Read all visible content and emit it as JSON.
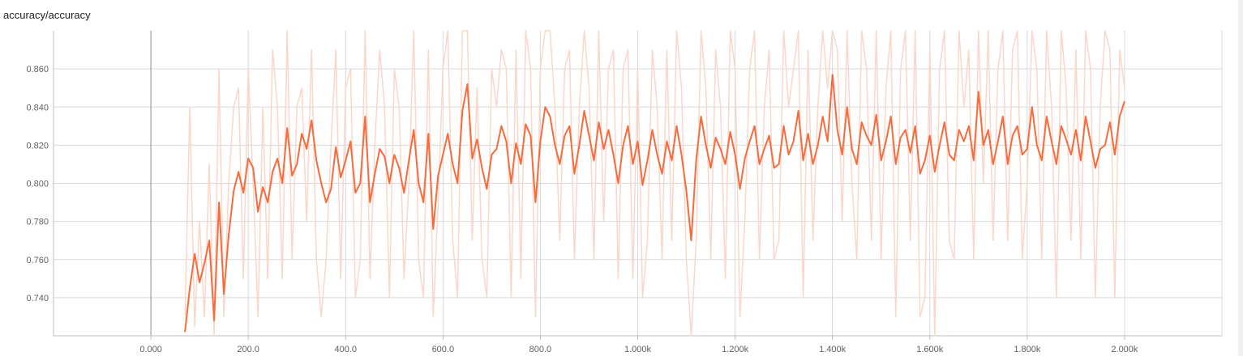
{
  "chart_data": {
    "type": "line",
    "title": "accuracy/accuracy",
    "xlabel": "",
    "ylabel": "",
    "xlim": [
      -200,
      2200
    ],
    "ylim": [
      0.72,
      0.88
    ],
    "x_ticks": [
      0,
      200,
      400,
      600,
      800,
      1000,
      1200,
      1400,
      1600,
      1800,
      2000
    ],
    "x_tick_labels": [
      "0.000",
      "200.0",
      "400.0",
      "600.0",
      "800.0",
      "1.000k",
      "1.200k",
      "1.400k",
      "1.600k",
      "1.800k",
      "2.000k"
    ],
    "y_ticks": [
      0.74,
      0.76,
      0.78,
      0.8,
      0.82,
      0.84,
      0.86
    ],
    "y_tick_labels": [
      "0.740",
      "0.760",
      "0.780",
      "0.800",
      "0.820",
      "0.840",
      "0.860"
    ],
    "grid": true,
    "colors": {
      "smoothed": "#f96b3c",
      "raw": "#fbd6c9",
      "zero_line": "#9e9e9e"
    },
    "series": [
      {
        "role": "smoothed",
        "x": [
          70,
          80,
          90,
          100,
          110,
          120,
          130,
          140,
          150,
          160,
          170,
          180,
          190,
          200,
          210,
          220,
          230,
          240,
          250,
          260,
          270,
          280,
          290,
          300,
          310,
          320,
          330,
          340,
          350,
          360,
          370,
          380,
          390,
          400,
          410,
          420,
          430,
          440,
          450,
          460,
          470,
          480,
          490,
          500,
          510,
          520,
          530,
          540,
          550,
          560,
          570,
          580,
          590,
          600,
          610,
          620,
          630,
          640,
          650,
          660,
          670,
          680,
          690,
          700,
          710,
          720,
          730,
          740,
          750,
          760,
          770,
          780,
          790,
          800,
          810,
          820,
          830,
          840,
          850,
          860,
          870,
          880,
          890,
          900,
          910,
          920,
          930,
          940,
          950,
          960,
          970,
          980,
          990,
          1000,
          1010,
          1020,
          1030,
          1040,
          1050,
          1060,
          1070,
          1080,
          1090,
          1100,
          1110,
          1120,
          1130,
          1140,
          1150,
          1160,
          1170,
          1180,
          1190,
          1200,
          1210,
          1220,
          1230,
          1240,
          1250,
          1260,
          1270,
          1280,
          1290,
          1300,
          1310,
          1320,
          1330,
          1340,
          1350,
          1360,
          1370,
          1380,
          1390,
          1400,
          1410,
          1420,
          1430,
          1440,
          1450,
          1460,
          1470,
          1480,
          1490,
          1500,
          1510,
          1520,
          1530,
          1540,
          1550,
          1560,
          1570,
          1580,
          1590,
          1600,
          1610,
          1620,
          1630,
          1640,
          1650,
          1660,
          1670,
          1680,
          1690,
          1700,
          1710,
          1720,
          1730,
          1740,
          1750,
          1760,
          1770,
          1780,
          1790,
          1800,
          1810,
          1820,
          1830,
          1840,
          1850,
          1860,
          1870,
          1880,
          1890,
          1900,
          1910,
          1920,
          1930,
          1940,
          1950,
          1960,
          1970,
          1980,
          1990,
          2000
        ],
        "y": [
          0.722,
          0.745,
          0.763,
          0.748,
          0.758,
          0.77,
          0.728,
          0.79,
          0.742,
          0.773,
          0.796,
          0.806,
          0.795,
          0.813,
          0.808,
          0.785,
          0.798,
          0.79,
          0.806,
          0.813,
          0.8,
          0.829,
          0.804,
          0.81,
          0.826,
          0.818,
          0.833,
          0.812,
          0.8,
          0.79,
          0.797,
          0.819,
          0.803,
          0.812,
          0.822,
          0.795,
          0.8,
          0.835,
          0.79,
          0.805,
          0.818,
          0.814,
          0.8,
          0.815,
          0.808,
          0.795,
          0.812,
          0.828,
          0.8,
          0.79,
          0.826,
          0.776,
          0.804,
          0.815,
          0.826,
          0.81,
          0.8,
          0.838,
          0.852,
          0.813,
          0.823,
          0.808,
          0.797,
          0.815,
          0.818,
          0.83,
          0.822,
          0.8,
          0.821,
          0.81,
          0.831,
          0.825,
          0.79,
          0.822,
          0.84,
          0.835,
          0.82,
          0.81,
          0.825,
          0.83,
          0.805,
          0.82,
          0.838,
          0.825,
          0.812,
          0.832,
          0.818,
          0.828,
          0.815,
          0.8,
          0.82,
          0.83,
          0.81,
          0.822,
          0.799,
          0.812,
          0.828,
          0.815,
          0.805,
          0.822,
          0.812,
          0.83,
          0.815,
          0.796,
          0.77,
          0.812,
          0.835,
          0.82,
          0.808,
          0.824,
          0.818,
          0.81,
          0.827,
          0.815,
          0.797,
          0.813,
          0.822,
          0.83,
          0.81,
          0.818,
          0.825,
          0.808,
          0.81,
          0.83,
          0.815,
          0.822,
          0.838,
          0.812,
          0.826,
          0.81,
          0.82,
          0.835,
          0.822,
          0.857,
          0.828,
          0.815,
          0.84,
          0.818,
          0.81,
          0.832,
          0.825,
          0.82,
          0.836,
          0.812,
          0.822,
          0.835,
          0.81,
          0.824,
          0.828,
          0.816,
          0.83,
          0.805,
          0.812,
          0.825,
          0.806,
          0.82,
          0.832,
          0.815,
          0.812,
          0.828,
          0.822,
          0.83,
          0.812,
          0.848,
          0.82,
          0.828,
          0.81,
          0.822,
          0.835,
          0.81,
          0.825,
          0.83,
          0.815,
          0.818,
          0.84,
          0.82,
          0.812,
          0.835,
          0.822,
          0.81,
          0.83,
          0.823,
          0.815,
          0.828,
          0.812,
          0.835,
          0.822,
          0.808,
          0.818,
          0.82,
          0.832,
          0.815,
          0.835,
          0.843
        ]
      },
      {
        "role": "raw",
        "x": [
          70,
          80,
          90,
          100,
          110,
          120,
          130,
          140,
          150,
          160,
          170,
          180,
          190,
          200,
          210,
          220,
          230,
          240,
          250,
          260,
          270,
          280,
          290,
          300,
          310,
          320,
          330,
          340,
          350,
          360,
          370,
          380,
          390,
          400,
          410,
          420,
          430,
          440,
          450,
          460,
          470,
          480,
          490,
          500,
          510,
          520,
          530,
          540,
          550,
          560,
          570,
          580,
          590,
          600,
          610,
          620,
          630,
          640,
          650,
          660,
          670,
          680,
          690,
          700,
          710,
          720,
          730,
          740,
          750,
          760,
          770,
          780,
          790,
          800,
          810,
          820,
          830,
          840,
          850,
          860,
          870,
          880,
          890,
          900,
          910,
          920,
          930,
          940,
          950,
          960,
          970,
          980,
          990,
          1000,
          1010,
          1020,
          1030,
          1040,
          1050,
          1060,
          1070,
          1080,
          1090,
          1100,
          1110,
          1120,
          1130,
          1140,
          1150,
          1160,
          1170,
          1180,
          1190,
          1200,
          1210,
          1220,
          1230,
          1240,
          1250,
          1260,
          1270,
          1280,
          1290,
          1300,
          1310,
          1320,
          1330,
          1340,
          1350,
          1360,
          1370,
          1380,
          1390,
          1400,
          1410,
          1420,
          1430,
          1440,
          1450,
          1460,
          1470,
          1480,
          1490,
          1500,
          1510,
          1520,
          1530,
          1540,
          1550,
          1560,
          1570,
          1580,
          1590,
          1600,
          1610,
          1620,
          1630,
          1640,
          1650,
          1660,
          1670,
          1680,
          1690,
          1700,
          1710,
          1720,
          1730,
          1740,
          1750,
          1760,
          1770,
          1780,
          1790,
          1800,
          1810,
          1820,
          1830,
          1840,
          1850,
          1860,
          1870,
          1880,
          1890,
          1900,
          1910,
          1920,
          1930,
          1940,
          1950,
          1960,
          1970,
          1980,
          1990,
          2000
        ],
        "y": [
          0.73,
          0.84,
          0.725,
          0.78,
          0.73,
          0.81,
          0.72,
          0.86,
          0.73,
          0.8,
          0.84,
          0.85,
          0.75,
          0.86,
          0.8,
          0.73,
          0.84,
          0.75,
          0.87,
          0.84,
          0.75,
          0.88,
          0.76,
          0.84,
          0.85,
          0.78,
          0.87,
          0.76,
          0.73,
          0.76,
          0.82,
          0.87,
          0.75,
          0.85,
          0.86,
          0.74,
          0.76,
          0.88,
          0.75,
          0.82,
          0.87,
          0.84,
          0.74,
          0.86,
          0.84,
          0.75,
          0.8,
          0.88,
          0.76,
          0.74,
          0.87,
          0.73,
          0.79,
          0.86,
          0.88,
          0.77,
          0.74,
          0.88,
          0.88,
          0.77,
          0.85,
          0.76,
          0.74,
          0.86,
          0.84,
          0.87,
          0.86,
          0.74,
          0.87,
          0.75,
          0.88,
          0.86,
          0.73,
          0.86,
          0.88,
          0.88,
          0.84,
          0.77,
          0.86,
          0.87,
          0.76,
          0.84,
          0.88,
          0.85,
          0.76,
          0.88,
          0.78,
          0.86,
          0.87,
          0.75,
          0.86,
          0.87,
          0.75,
          0.86,
          0.74,
          0.77,
          0.87,
          0.84,
          0.76,
          0.87,
          0.77,
          0.88,
          0.85,
          0.76,
          0.72,
          0.77,
          0.88,
          0.85,
          0.76,
          0.87,
          0.84,
          0.75,
          0.88,
          0.86,
          0.73,
          0.78,
          0.86,
          0.88,
          0.76,
          0.84,
          0.87,
          0.76,
          0.77,
          0.88,
          0.84,
          0.86,
          0.88,
          0.74,
          0.87,
          0.77,
          0.84,
          0.88,
          0.85,
          0.88,
          0.87,
          0.78,
          0.88,
          0.8,
          0.76,
          0.88,
          0.86,
          0.77,
          0.88,
          0.76,
          0.85,
          0.88,
          0.73,
          0.86,
          0.88,
          0.77,
          0.88,
          0.73,
          0.74,
          0.87,
          0.72,
          0.86,
          0.88,
          0.77,
          0.76,
          0.88,
          0.84,
          0.87,
          0.76,
          0.88,
          0.8,
          0.88,
          0.77,
          0.86,
          0.88,
          0.77,
          0.87,
          0.88,
          0.76,
          0.8,
          0.88,
          0.86,
          0.76,
          0.88,
          0.84,
          0.74,
          0.88,
          0.85,
          0.77,
          0.87,
          0.76,
          0.88,
          0.86,
          0.74,
          0.84,
          0.88,
          0.87,
          0.74,
          0.87,
          0.85
        ]
      }
    ]
  }
}
